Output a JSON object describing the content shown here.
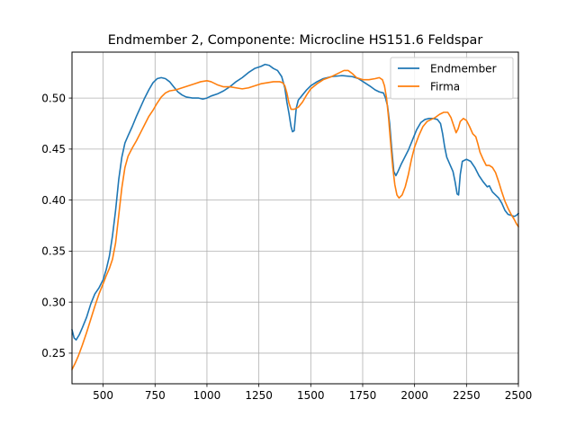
{
  "chart_data": {
    "type": "line",
    "title": "Endmember 2, Componente: Microcline HS151.6  Feldspar",
    "xlabel": "",
    "ylabel": "",
    "xlim": [
      350,
      2500
    ],
    "ylim": [
      0.22,
      0.545
    ],
    "xticks": [
      500,
      750,
      1000,
      1250,
      1500,
      1750,
      2000,
      2250,
      2500
    ],
    "xtick_labels": [
      "500",
      "750",
      "1000",
      "1250",
      "1500",
      "1750",
      "2000",
      "2250",
      "2500"
    ],
    "yticks": [
      0.25,
      0.3,
      0.35,
      0.4,
      0.45,
      0.5
    ],
    "ytick_labels": [
      "0.25",
      "0.30",
      "0.35",
      "0.40",
      "0.45",
      "0.50"
    ],
    "grid": true,
    "legend_position": "upper right",
    "series": [
      {
        "name": "Endmember",
        "color": "#1f77b4",
        "points": [
          [
            350,
            0.273
          ],
          [
            360,
            0.265
          ],
          [
            370,
            0.263
          ],
          [
            385,
            0.268
          ],
          [
            400,
            0.275
          ],
          [
            420,
            0.285
          ],
          [
            440,
            0.298
          ],
          [
            460,
            0.308
          ],
          [
            480,
            0.314
          ],
          [
            500,
            0.322
          ],
          [
            515,
            0.332
          ],
          [
            530,
            0.345
          ],
          [
            545,
            0.365
          ],
          [
            560,
            0.39
          ],
          [
            575,
            0.42
          ],
          [
            590,
            0.442
          ],
          [
            605,
            0.456
          ],
          [
            620,
            0.463
          ],
          [
            640,
            0.472
          ],
          [
            660,
            0.482
          ],
          [
            680,
            0.491
          ],
          [
            700,
            0.5
          ],
          [
            720,
            0.508
          ],
          [
            740,
            0.515
          ],
          [
            760,
            0.519
          ],
          [
            780,
            0.52
          ],
          [
            800,
            0.519
          ],
          [
            820,
            0.516
          ],
          [
            840,
            0.511
          ],
          [
            860,
            0.506
          ],
          [
            880,
            0.503
          ],
          [
            900,
            0.501
          ],
          [
            930,
            0.5
          ],
          [
            960,
            0.5
          ],
          [
            980,
            0.499
          ],
          [
            1000,
            0.5
          ],
          [
            1020,
            0.502
          ],
          [
            1050,
            0.504
          ],
          [
            1080,
            0.507
          ],
          [
            1110,
            0.511
          ],
          [
            1140,
            0.516
          ],
          [
            1170,
            0.52
          ],
          [
            1200,
            0.525
          ],
          [
            1230,
            0.529
          ],
          [
            1260,
            0.531
          ],
          [
            1280,
            0.533
          ],
          [
            1300,
            0.532
          ],
          [
            1320,
            0.529
          ],
          [
            1340,
            0.527
          ],
          [
            1360,
            0.521
          ],
          [
            1375,
            0.51
          ],
          [
            1385,
            0.496
          ],
          [
            1395,
            0.485
          ],
          [
            1405,
            0.472
          ],
          [
            1412,
            0.467
          ],
          [
            1420,
            0.468
          ],
          [
            1430,
            0.49
          ],
          [
            1440,
            0.498
          ],
          [
            1460,
            0.503
          ],
          [
            1480,
            0.508
          ],
          [
            1500,
            0.512
          ],
          [
            1530,
            0.516
          ],
          [
            1560,
            0.519
          ],
          [
            1600,
            0.521
          ],
          [
            1650,
            0.522
          ],
          [
            1700,
            0.521
          ],
          [
            1730,
            0.519
          ],
          [
            1760,
            0.515
          ],
          [
            1790,
            0.511
          ],
          [
            1810,
            0.508
          ],
          [
            1830,
            0.506
          ],
          [
            1850,
            0.505
          ],
          [
            1860,
            0.5
          ],
          [
            1870,
            0.492
          ],
          [
            1880,
            0.475
          ],
          [
            1890,
            0.45
          ],
          [
            1900,
            0.428
          ],
          [
            1910,
            0.424
          ],
          [
            1920,
            0.428
          ],
          [
            1935,
            0.435
          ],
          [
            1950,
            0.441
          ],
          [
            1970,
            0.449
          ],
          [
            1990,
            0.459
          ],
          [
            2010,
            0.469
          ],
          [
            2030,
            0.476
          ],
          [
            2050,
            0.479
          ],
          [
            2070,
            0.48
          ],
          [
            2090,
            0.48
          ],
          [
            2110,
            0.479
          ],
          [
            2125,
            0.475
          ],
          [
            2135,
            0.465
          ],
          [
            2145,
            0.452
          ],
          [
            2155,
            0.442
          ],
          [
            2170,
            0.435
          ],
          [
            2185,
            0.428
          ],
          [
            2195,
            0.418
          ],
          [
            2205,
            0.406
          ],
          [
            2212,
            0.405
          ],
          [
            2220,
            0.425
          ],
          [
            2230,
            0.438
          ],
          [
            2250,
            0.44
          ],
          [
            2270,
            0.438
          ],
          [
            2290,
            0.432
          ],
          [
            2310,
            0.424
          ],
          [
            2330,
            0.418
          ],
          [
            2350,
            0.413
          ],
          [
            2360,
            0.414
          ],
          [
            2375,
            0.408
          ],
          [
            2390,
            0.405
          ],
          [
            2405,
            0.402
          ],
          [
            2420,
            0.397
          ],
          [
            2435,
            0.39
          ],
          [
            2450,
            0.386
          ],
          [
            2465,
            0.385
          ],
          [
            2480,
            0.384
          ],
          [
            2490,
            0.385
          ],
          [
            2500,
            0.387
          ]
        ]
      },
      {
        "name": "Firma",
        "color": "#ff7f0e",
        "points": [
          [
            350,
            0.234
          ],
          [
            365,
            0.24
          ],
          [
            380,
            0.247
          ],
          [
            400,
            0.258
          ],
          [
            420,
            0.27
          ],
          [
            440,
            0.283
          ],
          [
            460,
            0.296
          ],
          [
            480,
            0.308
          ],
          [
            500,
            0.318
          ],
          [
            515,
            0.326
          ],
          [
            530,
            0.333
          ],
          [
            545,
            0.342
          ],
          [
            560,
            0.358
          ],
          [
            575,
            0.385
          ],
          [
            590,
            0.412
          ],
          [
            605,
            0.432
          ],
          [
            620,
            0.443
          ],
          [
            640,
            0.451
          ],
          [
            660,
            0.458
          ],
          [
            680,
            0.466
          ],
          [
            700,
            0.474
          ],
          [
            720,
            0.482
          ],
          [
            740,
            0.488
          ],
          [
            760,
            0.495
          ],
          [
            780,
            0.501
          ],
          [
            800,
            0.505
          ],
          [
            820,
            0.507
          ],
          [
            850,
            0.508
          ],
          [
            880,
            0.51
          ],
          [
            910,
            0.512
          ],
          [
            940,
            0.514
          ],
          [
            970,
            0.516
          ],
          [
            1000,
            0.517
          ],
          [
            1020,
            0.516
          ],
          [
            1050,
            0.513
          ],
          [
            1080,
            0.511
          ],
          [
            1110,
            0.511
          ],
          [
            1140,
            0.51
          ],
          [
            1170,
            0.509
          ],
          [
            1200,
            0.51
          ],
          [
            1230,
            0.512
          ],
          [
            1260,
            0.514
          ],
          [
            1290,
            0.515
          ],
          [
            1320,
            0.516
          ],
          [
            1350,
            0.516
          ],
          [
            1365,
            0.515
          ],
          [
            1375,
            0.512
          ],
          [
            1385,
            0.505
          ],
          [
            1395,
            0.495
          ],
          [
            1405,
            0.489
          ],
          [
            1420,
            0.489
          ],
          [
            1440,
            0.491
          ],
          [
            1460,
            0.496
          ],
          [
            1480,
            0.503
          ],
          [
            1500,
            0.509
          ],
          [
            1530,
            0.514
          ],
          [
            1560,
            0.518
          ],
          [
            1600,
            0.521
          ],
          [
            1630,
            0.524
          ],
          [
            1660,
            0.527
          ],
          [
            1680,
            0.527
          ],
          [
            1700,
            0.524
          ],
          [
            1720,
            0.52
          ],
          [
            1750,
            0.518
          ],
          [
            1780,
            0.518
          ],
          [
            1810,
            0.519
          ],
          [
            1830,
            0.52
          ],
          [
            1845,
            0.518
          ],
          [
            1855,
            0.512
          ],
          [
            1865,
            0.5
          ],
          [
            1875,
            0.48
          ],
          [
            1885,
            0.455
          ],
          [
            1895,
            0.432
          ],
          [
            1905,
            0.415
          ],
          [
            1915,
            0.405
          ],
          [
            1925,
            0.402
          ],
          [
            1940,
            0.405
          ],
          [
            1955,
            0.413
          ],
          [
            1970,
            0.425
          ],
          [
            1985,
            0.44
          ],
          [
            2000,
            0.452
          ],
          [
            2020,
            0.463
          ],
          [
            2040,
            0.472
          ],
          [
            2060,
            0.477
          ],
          [
            2080,
            0.479
          ],
          [
            2100,
            0.481
          ],
          [
            2120,
            0.484
          ],
          [
            2140,
            0.486
          ],
          [
            2160,
            0.486
          ],
          [
            2175,
            0.481
          ],
          [
            2190,
            0.472
          ],
          [
            2200,
            0.466
          ],
          [
            2210,
            0.47
          ],
          [
            2220,
            0.477
          ],
          [
            2235,
            0.48
          ],
          [
            2250,
            0.478
          ],
          [
            2265,
            0.472
          ],
          [
            2280,
            0.465
          ],
          [
            2295,
            0.462
          ],
          [
            2305,
            0.455
          ],
          [
            2315,
            0.447
          ],
          [
            2330,
            0.44
          ],
          [
            2345,
            0.434
          ],
          [
            2360,
            0.434
          ],
          [
            2375,
            0.432
          ],
          [
            2390,
            0.427
          ],
          [
            2405,
            0.418
          ],
          [
            2420,
            0.408
          ],
          [
            2435,
            0.399
          ],
          [
            2450,
            0.392
          ],
          [
            2465,
            0.386
          ],
          [
            2480,
            0.381
          ],
          [
            2490,
            0.377
          ],
          [
            2500,
            0.374
          ]
        ]
      }
    ]
  }
}
